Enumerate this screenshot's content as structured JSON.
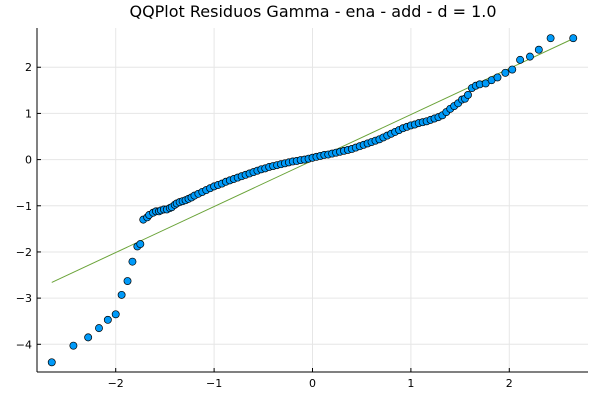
{
  "chart_data": {
    "type": "scatter",
    "title": "QQPlot Residuos Gamma - ena - add - d = 1.0",
    "xlabel": "",
    "ylabel": "",
    "xlim": [
      -2.8,
      2.8
    ],
    "ylim": [
      -4.6,
      2.85
    ],
    "grid": true,
    "legend": "none",
    "xticks": [
      -2,
      -1,
      0,
      1,
      2
    ],
    "xtick_labels": [
      "−2",
      "−1",
      "0",
      "1",
      "2"
    ],
    "yticks": [
      -4,
      -3,
      -2,
      -1,
      0,
      1,
      2
    ],
    "ytick_labels": [
      "−4",
      "−3",
      "−2",
      "−1",
      "0",
      "1",
      "2"
    ],
    "colors": {
      "points": "#009af9",
      "point_edge": "#000000",
      "reference_line": "#6aa338",
      "grid": "#e6e6e6"
    },
    "reference_line": {
      "x": [
        -2.65,
        2.65
      ],
      "y": [
        -2.66,
        2.62
      ]
    },
    "series": [
      {
        "x": [
          -2.65,
          -2.43,
          -2.28,
          -2.17,
          -2.08,
          -2.0,
          -1.94,
          -1.88,
          -1.83,
          -1.78,
          -1.75,
          -1.72,
          -1.68,
          -1.66,
          -1.62,
          -1.59,
          -1.56,
          -1.54,
          -1.51,
          -1.48,
          -1.45,
          -1.43,
          -1.4,
          -1.38,
          -1.35,
          -1.32,
          -1.29,
          -1.26,
          -1.23,
          -1.2,
          -1.16,
          -1.12,
          -1.08,
          -1.04,
          -1.0,
          -0.96,
          -0.92,
          -0.88,
          -0.84,
          -0.8,
          -0.76,
          -0.72,
          -0.68,
          -0.64,
          -0.6,
          -0.56,
          -0.52,
          -0.48,
          -0.44,
          -0.4,
          -0.36,
          -0.32,
          -0.28,
          -0.24,
          -0.2,
          -0.16,
          -0.12,
          -0.08,
          -0.04,
          0.0,
          0.04,
          0.08,
          0.12,
          0.16,
          0.2,
          0.24,
          0.28,
          0.32,
          0.36,
          0.4,
          0.44,
          0.48,
          0.52,
          0.56,
          0.6,
          0.64,
          0.68,
          0.72,
          0.76,
          0.8,
          0.84,
          0.88,
          0.92,
          0.96,
          1.0,
          1.04,
          1.08,
          1.12,
          1.16,
          1.2,
          1.24,
          1.28,
          1.32,
          1.36,
          1.4,
          1.44,
          1.48,
          1.52,
          1.55,
          1.58,
          1.62,
          1.66,
          1.7,
          1.76,
          1.82,
          1.88,
          1.96,
          2.03,
          2.11,
          2.21,
          2.3,
          2.42,
          2.65
        ],
        "y": [
          -4.39,
          -4.03,
          -3.85,
          -3.65,
          -3.47,
          -3.35,
          -2.93,
          -2.63,
          -2.21,
          -1.88,
          -1.83,
          -1.3,
          -1.25,
          -1.2,
          -1.15,
          -1.12,
          -1.12,
          -1.1,
          -1.08,
          -1.08,
          -1.05,
          -1.03,
          -0.98,
          -0.95,
          -0.92,
          -0.9,
          -0.88,
          -0.85,
          -0.82,
          -0.78,
          -0.74,
          -0.7,
          -0.66,
          -0.62,
          -0.58,
          -0.55,
          -0.52,
          -0.48,
          -0.45,
          -0.42,
          -0.39,
          -0.36,
          -0.33,
          -0.3,
          -0.27,
          -0.24,
          -0.21,
          -0.19,
          -0.16,
          -0.14,
          -0.12,
          -0.1,
          -0.08,
          -0.06,
          -0.04,
          -0.03,
          -0.01,
          0.0,
          0.02,
          0.04,
          0.06,
          0.08,
          0.1,
          0.11,
          0.13,
          0.15,
          0.17,
          0.19,
          0.21,
          0.23,
          0.26,
          0.29,
          0.32,
          0.35,
          0.38,
          0.41,
          0.44,
          0.48,
          0.52,
          0.56,
          0.6,
          0.64,
          0.68,
          0.71,
          0.74,
          0.76,
          0.79,
          0.81,
          0.83,
          0.86,
          0.89,
          0.92,
          0.96,
          1.03,
          1.1,
          1.16,
          1.22,
          1.3,
          1.32,
          1.4,
          1.55,
          1.6,
          1.63,
          1.65,
          1.72,
          1.78,
          1.88,
          1.95,
          2.16,
          2.23,
          2.38,
          2.63,
          2.63
        ]
      }
    ]
  }
}
